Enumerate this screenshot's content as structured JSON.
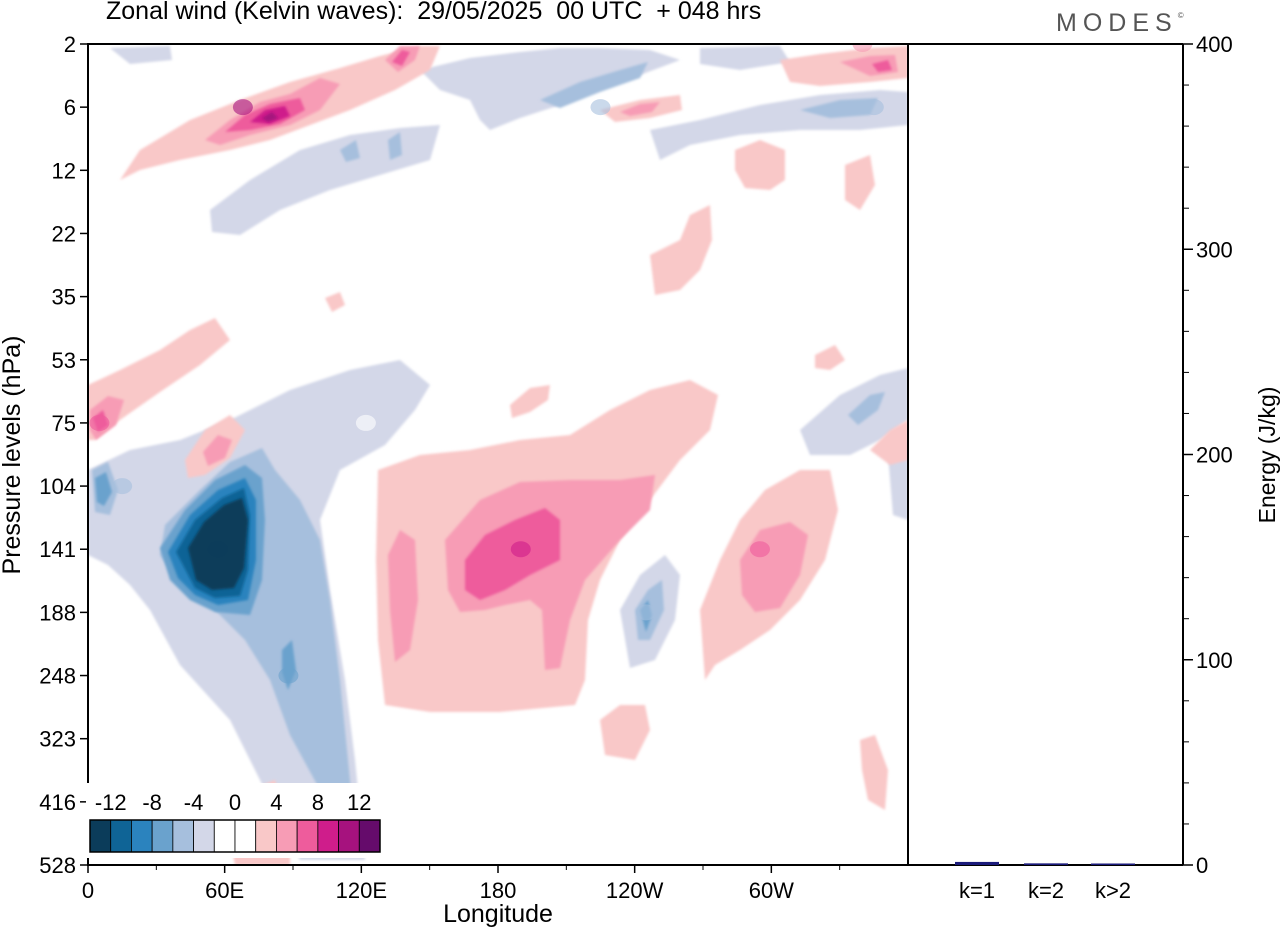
{
  "title": "Zonal wind (Kelvin waves):  29/05/2025  00 UTC  + 048 hrs",
  "logo": {
    "text": "MODES",
    "mark": "©"
  },
  "chart_data": {
    "type": "heatmap",
    "xlabel": "Longitude",
    "ylabel": "Pressure levels (hPa)",
    "x_ticks": [
      "0",
      "60E",
      "120E",
      "180",
      "120W",
      "60W"
    ],
    "x_tick_values_deg": [
      0,
      60,
      120,
      180,
      240,
      300
    ],
    "xlim": [
      0,
      360
    ],
    "y_ticks": [
      "2",
      "6",
      "12",
      "22",
      "35",
      "53",
      "75",
      "104",
      "141",
      "188",
      "248",
      "323",
      "416",
      "528"
    ],
    "colorbar": {
      "tick_labels": [
        "-12",
        "-8",
        "-4",
        "0",
        "4",
        "8",
        "12"
      ],
      "tick_values": [
        -12,
        -8,
        -4,
        0,
        4,
        8,
        12
      ],
      "colors": [
        "#0b3c5a",
        "#0f6496",
        "#2b83be",
        "#6aa2cd",
        "#a6bfdd",
        "#d3d7e8",
        "#ffffff",
        "#ffffff",
        "#f9c8c8",
        "#f79cb5",
        "#ee5c9c",
        "#cf1d8b",
        "#a6127e",
        "#650b6b"
      ]
    },
    "features": [
      {
        "lon": 15,
        "level": "104",
        "value": -6
      },
      {
        "lon": 57,
        "level": "141",
        "value": -13
      },
      {
        "lon": 88,
        "level": "248",
        "value": -8
      },
      {
        "lon": 122,
        "level": "75",
        "value": -2
      },
      {
        "lon": 68,
        "level": "6",
        "value": 11
      },
      {
        "lon": 5,
        "level": "75",
        "value": 7
      },
      {
        "lon": 190,
        "level": "141",
        "value": 8
      },
      {
        "lon": 295,
        "level": "141",
        "value": 6
      },
      {
        "lon": 245,
        "level": "188",
        "value": -6
      },
      {
        "lon": 345,
        "level": "6",
        "value": -5
      },
      {
        "lon": 340,
        "level": "2",
        "value": 5
      },
      {
        "lon": 225,
        "level": "6",
        "value": -6
      }
    ],
    "energy_bars": {
      "ylabel": "Energy (J/kg)",
      "ylim": [
        0,
        400
      ],
      "y_ticks": [
        "0",
        "100",
        "200",
        "300",
        "400"
      ],
      "categories": [
        "k=1",
        "k=2",
        "k>2"
      ],
      "values": [
        1.5,
        0.8,
        0.6
      ],
      "color": "#1a1a7a"
    }
  }
}
